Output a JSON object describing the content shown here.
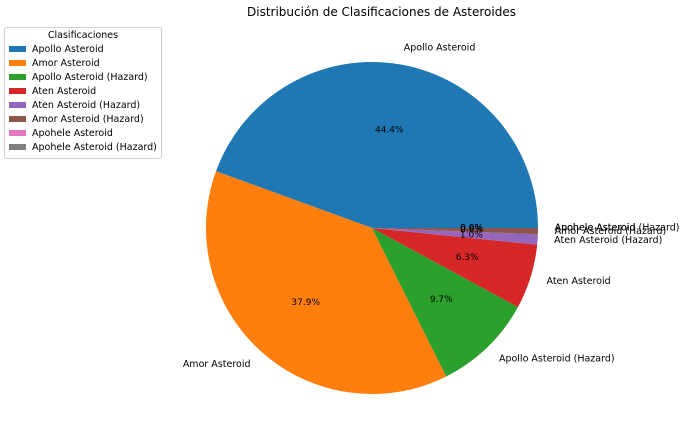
{
  "chart_data": {
    "type": "pie",
    "title": "Distribución de Clasificaciones de Asteroides",
    "legend": {
      "title": "Clasificaciones",
      "placement": "top-left"
    },
    "slices": [
      {
        "label": "Apollo Asteroid",
        "value": 44.4,
        "color": "#1f77b4",
        "pct_text": "44.4%"
      },
      {
        "label": "Amor Asteroid",
        "value": 37.9,
        "color": "#ff7f0e",
        "pct_text": "37.9%"
      },
      {
        "label": "Apollo Asteroid (Hazard)",
        "value": 9.7,
        "color": "#2ca02c",
        "pct_text": "9.7%"
      },
      {
        "label": "Aten Asteroid",
        "value": 6.3,
        "color": "#d62728",
        "pct_text": "6.3%"
      },
      {
        "label": "Aten Asteroid (Hazard)",
        "value": 1.0,
        "color": "#9467bd",
        "pct_text": "1.0%"
      },
      {
        "label": "Amor Asteroid (Hazard)",
        "value": 0.6,
        "color": "#8c564b",
        "pct_text": "0.6%"
      },
      {
        "label": "Apohele Asteroid",
        "value": 0.0,
        "color": "#e377c2",
        "pct_text": "0.0%"
      },
      {
        "label": "Apohele Asteroid (Hazard)",
        "value": 0.0,
        "color": "#7f7f7f",
        "pct_text": "0.0%"
      }
    ]
  }
}
